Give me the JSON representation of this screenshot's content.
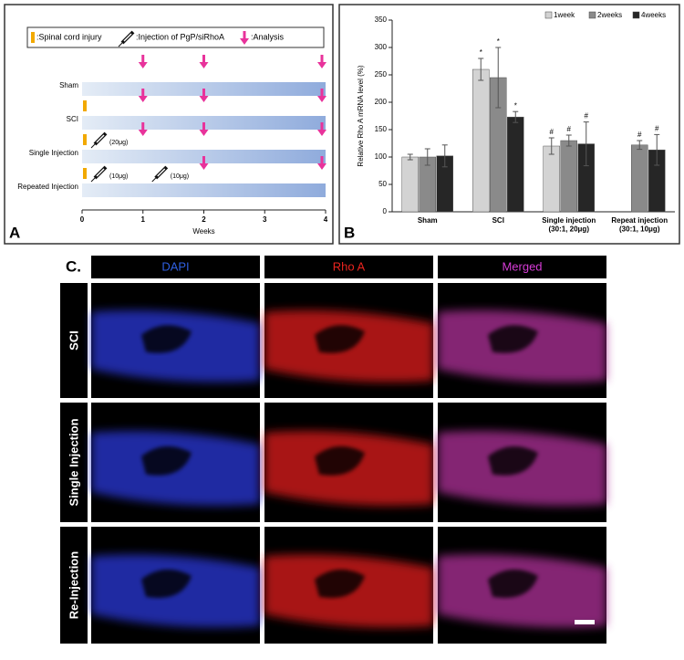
{
  "panel_a": {
    "label": "A",
    "legend": [
      ":Spinal cord injury",
      ":Injection of PgP/siRhoA",
      ":Analysis"
    ],
    "rows": [
      {
        "name": "Sham",
        "analysis": [
          1,
          2,
          4
        ]
      },
      {
        "name": "SCI",
        "injury": [
          0
        ],
        "analysis": [
          1,
          2,
          4
        ]
      },
      {
        "name": "Single Injection",
        "injury": [
          0
        ],
        "injections": [
          {
            "week": 0,
            "label": "(20μg)"
          }
        ],
        "analysis": [
          1,
          2,
          4
        ]
      },
      {
        "name": "Repeated Injection",
        "injury": [
          0
        ],
        "injections": [
          {
            "week": 0,
            "label": "(10μg)"
          },
          {
            "week": 1,
            "label": "(10μg)"
          }
        ],
        "analysis": [
          2,
          4
        ]
      }
    ],
    "xlim": [
      0,
      4
    ],
    "xticks": [
      0,
      1,
      2,
      3,
      4
    ],
    "xlabel": "Weeks"
  },
  "chart_data": {
    "type": "bar",
    "panel_label": "B",
    "y_label": "Relative Rho A mRNA level (%)",
    "categories": [
      "Sham",
      "SCI",
      "Single injection\n(30:1, 20μg)",
      "Repeat injection\n(30:1, 10μg)"
    ],
    "series": [
      {
        "name": "1week",
        "color": "#d3d3d3",
        "values": [
          100,
          260,
          120,
          null
        ],
        "errors": [
          5,
          20,
          15,
          null
        ],
        "markers": [
          null,
          "*",
          "#",
          null
        ]
      },
      {
        "name": "2weeks",
        "color": "#8a8a8a",
        "values": [
          100,
          245,
          130,
          122
        ],
        "errors": [
          15,
          55,
          10,
          8
        ],
        "markers": [
          null,
          "*",
          "#",
          "#"
        ]
      },
      {
        "name": "4weeks",
        "color": "#262626",
        "values": [
          102,
          173,
          124,
          113
        ],
        "errors": [
          20,
          10,
          40,
          28
        ],
        "markers": [
          null,
          "*",
          "#",
          "#"
        ]
      }
    ],
    "ylim": [
      0,
      350
    ],
    "yticks": [
      0,
      50,
      100,
      150,
      200,
      250,
      300,
      350
    ],
    "grid": false,
    "legend_position": "top-right"
  },
  "panel_c": {
    "label": "C.",
    "columns": [
      "DAPI",
      "Rho A",
      "Merged"
    ],
    "column_colors": [
      "#2f5fe0",
      "#e8241e",
      "#d63cd6"
    ],
    "image_colors": [
      "#2a38d8",
      "#e01c1c",
      "#b0309a"
    ],
    "rows": [
      "SCI",
      "Single Injection",
      "Re-Injection"
    ]
  }
}
